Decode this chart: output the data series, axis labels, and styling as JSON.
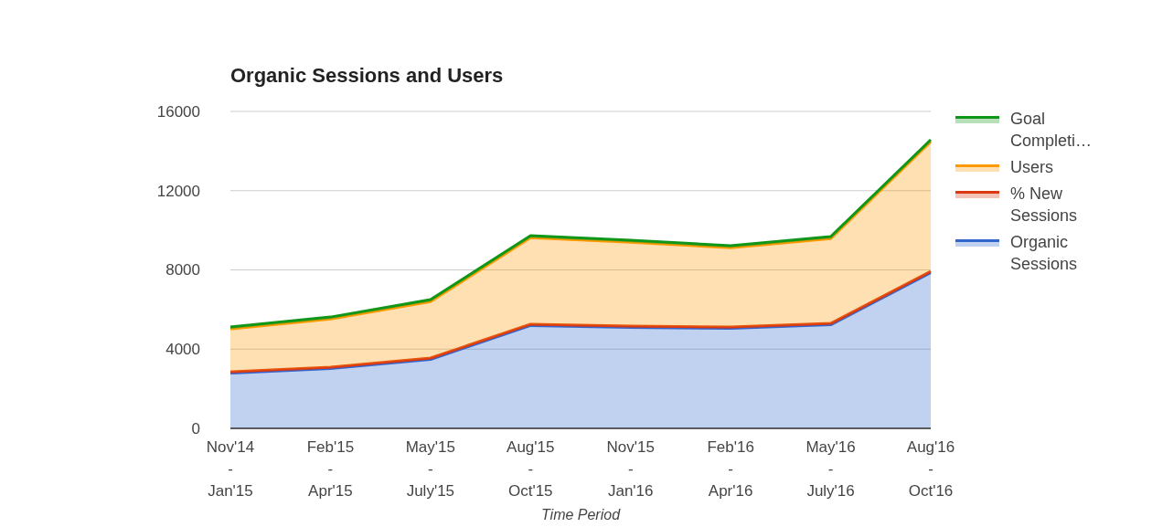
{
  "chart_data": {
    "type": "area",
    "stacked": true,
    "title": "Organic Sessions and Users",
    "xlabel": "Time Period",
    "categories": [
      "Nov'14\n-\nJan'15",
      "Feb'15\n-\nApr'15",
      "May'15\n-\nJuly'15",
      "Aug'15\n-\nOct'15",
      "Nov'15\n-\nJan'16",
      "Feb'16\n-\nApr'16",
      "May'16\n-\nJuly'16",
      "Aug'16\n-\nOct'16"
    ],
    "series": [
      {
        "name": "Organic Sessions",
        "color": "#3366cc",
        "values": [
          2790,
          3020,
          3480,
          5190,
          5090,
          5050,
          5230,
          7860
        ]
      },
      {
        "name": "% New Sessions",
        "color": "#dc3912",
        "values": [
          70,
          70,
          70,
          70,
          70,
          70,
          70,
          70
        ]
      },
      {
        "name": "Users",
        "color": "#ff9900",
        "values": [
          2160,
          2430,
          2850,
          4370,
          4240,
          4000,
          4280,
          6540
        ]
      },
      {
        "name": "Goal Completi…",
        "color": "#109618",
        "values": [
          100,
          100,
          100,
          100,
          100,
          100,
          100,
          100
        ]
      }
    ],
    "ylim": [
      0,
      16000
    ],
    "yticks": [
      0,
      4000,
      8000,
      12000,
      16000
    ],
    "grid": "y",
    "legend": "right"
  }
}
